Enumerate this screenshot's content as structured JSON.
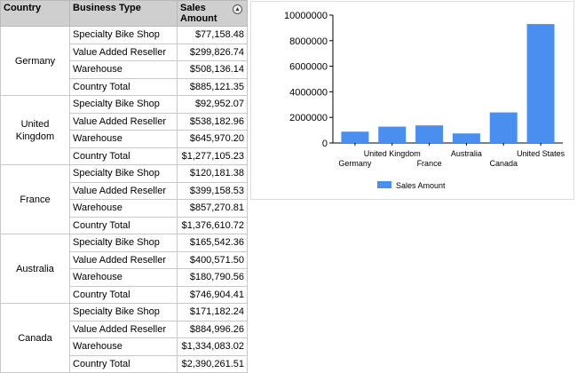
{
  "table": {
    "headers": {
      "country": "Country",
      "business_type": "Business Type",
      "sales_amount": "Sales Amount"
    },
    "sort_icon": "sort-toggle-icon",
    "groups": [
      {
        "country": "Germany",
        "rows": [
          {
            "business_type": "Specialty Bike Shop",
            "amount": "$77,158.48"
          },
          {
            "business_type": "Value Added Reseller",
            "amount": "$299,826.74"
          },
          {
            "business_type": "Warehouse",
            "amount": "$508,136.14"
          },
          {
            "business_type": "Country Total",
            "amount": "$885,121.35"
          }
        ]
      },
      {
        "country": "United Kingdom",
        "rows": [
          {
            "business_type": "Specialty Bike Shop",
            "amount": "$92,952.07"
          },
          {
            "business_type": "Value Added Reseller",
            "amount": "$538,182.96"
          },
          {
            "business_type": "Warehouse",
            "amount": "$645,970.20"
          },
          {
            "business_type": "Country Total",
            "amount": "$1,277,105.23"
          }
        ]
      },
      {
        "country": "France",
        "rows": [
          {
            "business_type": "Specialty Bike Shop",
            "amount": "$120,181.38"
          },
          {
            "business_type": "Value Added Reseller",
            "amount": "$399,158.53"
          },
          {
            "business_type": "Warehouse",
            "amount": "$857,270.81"
          },
          {
            "business_type": "Country Total",
            "amount": "$1,376,610.72"
          }
        ]
      },
      {
        "country": "Australia",
        "rows": [
          {
            "business_type": "Specialty Bike Shop",
            "amount": "$165,542.36"
          },
          {
            "business_type": "Value Added Reseller",
            "amount": "$400,571.50"
          },
          {
            "business_type": "Warehouse",
            "amount": "$180,790.56"
          },
          {
            "business_type": "Country Total",
            "amount": "$746,904.41"
          }
        ]
      },
      {
        "country": "Canada",
        "rows": [
          {
            "business_type": "Specialty Bike Shop",
            "amount": "$171,182.24"
          },
          {
            "business_type": "Value Added Reseller",
            "amount": "$884,996.26"
          },
          {
            "business_type": "Warehouse",
            "amount": "$1,334,083.02"
          },
          {
            "business_type": "Country Total",
            "amount": "$2,390,261.51"
          }
        ]
      }
    ]
  },
  "chart_data": {
    "type": "bar",
    "categories": [
      "Germany",
      "United Kingdom",
      "France",
      "Australia",
      "Canada",
      "United States"
    ],
    "series": [
      {
        "name": "Sales Amount",
        "values": [
          885121.35,
          1277105.23,
          1376610.72,
          746904.41,
          2390261.51,
          9300000
        ],
        "color": "#4a8ef0"
      }
    ],
    "ylim": [
      0,
      10000000
    ],
    "yticks": [
      "0",
      "2000000",
      "4000000",
      "6000000",
      "8000000",
      "10000000"
    ],
    "grid": false,
    "legend_position": "bottom"
  }
}
